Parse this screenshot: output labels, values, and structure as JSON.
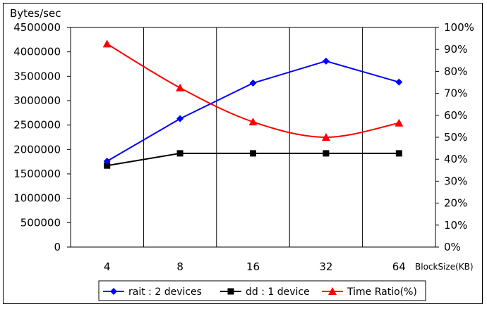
{
  "chart_data": {
    "type": "line",
    "ylabel": "Bytes/sec",
    "xlabel": "BlockSize(KB)",
    "categories": [
      "4",
      "8",
      "16",
      "32",
      "64"
    ],
    "ylim": [
      0,
      4500000
    ],
    "y_ticks": [
      "0",
      "500000",
      "1000000",
      "1500000",
      "2000000",
      "2500000",
      "3000000",
      "3500000",
      "4000000",
      "4500000"
    ],
    "y2lim": [
      0,
      100
    ],
    "y2_ticks": [
      "0%",
      "10%",
      "20%",
      "30%",
      "40%",
      "50%",
      "60%",
      "70%",
      "80%",
      "90%",
      "100%"
    ],
    "grid": "vertical",
    "legend_position": "bottom",
    "series": [
      {
        "name": "rait : 2 devices",
        "axis": "left",
        "color": "#0000ff",
        "marker": "diamond",
        "smooth": false,
        "values": [
          1760000,
          2630000,
          3360000,
          3810000,
          3380000
        ]
      },
      {
        "name": "dd : 1 device",
        "axis": "left",
        "color": "#000000",
        "marker": "square",
        "smooth": false,
        "values": [
          1670000,
          1920000,
          1920000,
          1920000,
          1920000
        ]
      },
      {
        "name": "Time Ratio(%)",
        "axis": "right",
        "color": "#ff0000",
        "marker": "triangle",
        "smooth": true,
        "values": [
          92.5,
          72.5,
          57.0,
          50.0,
          56.5
        ]
      }
    ]
  }
}
